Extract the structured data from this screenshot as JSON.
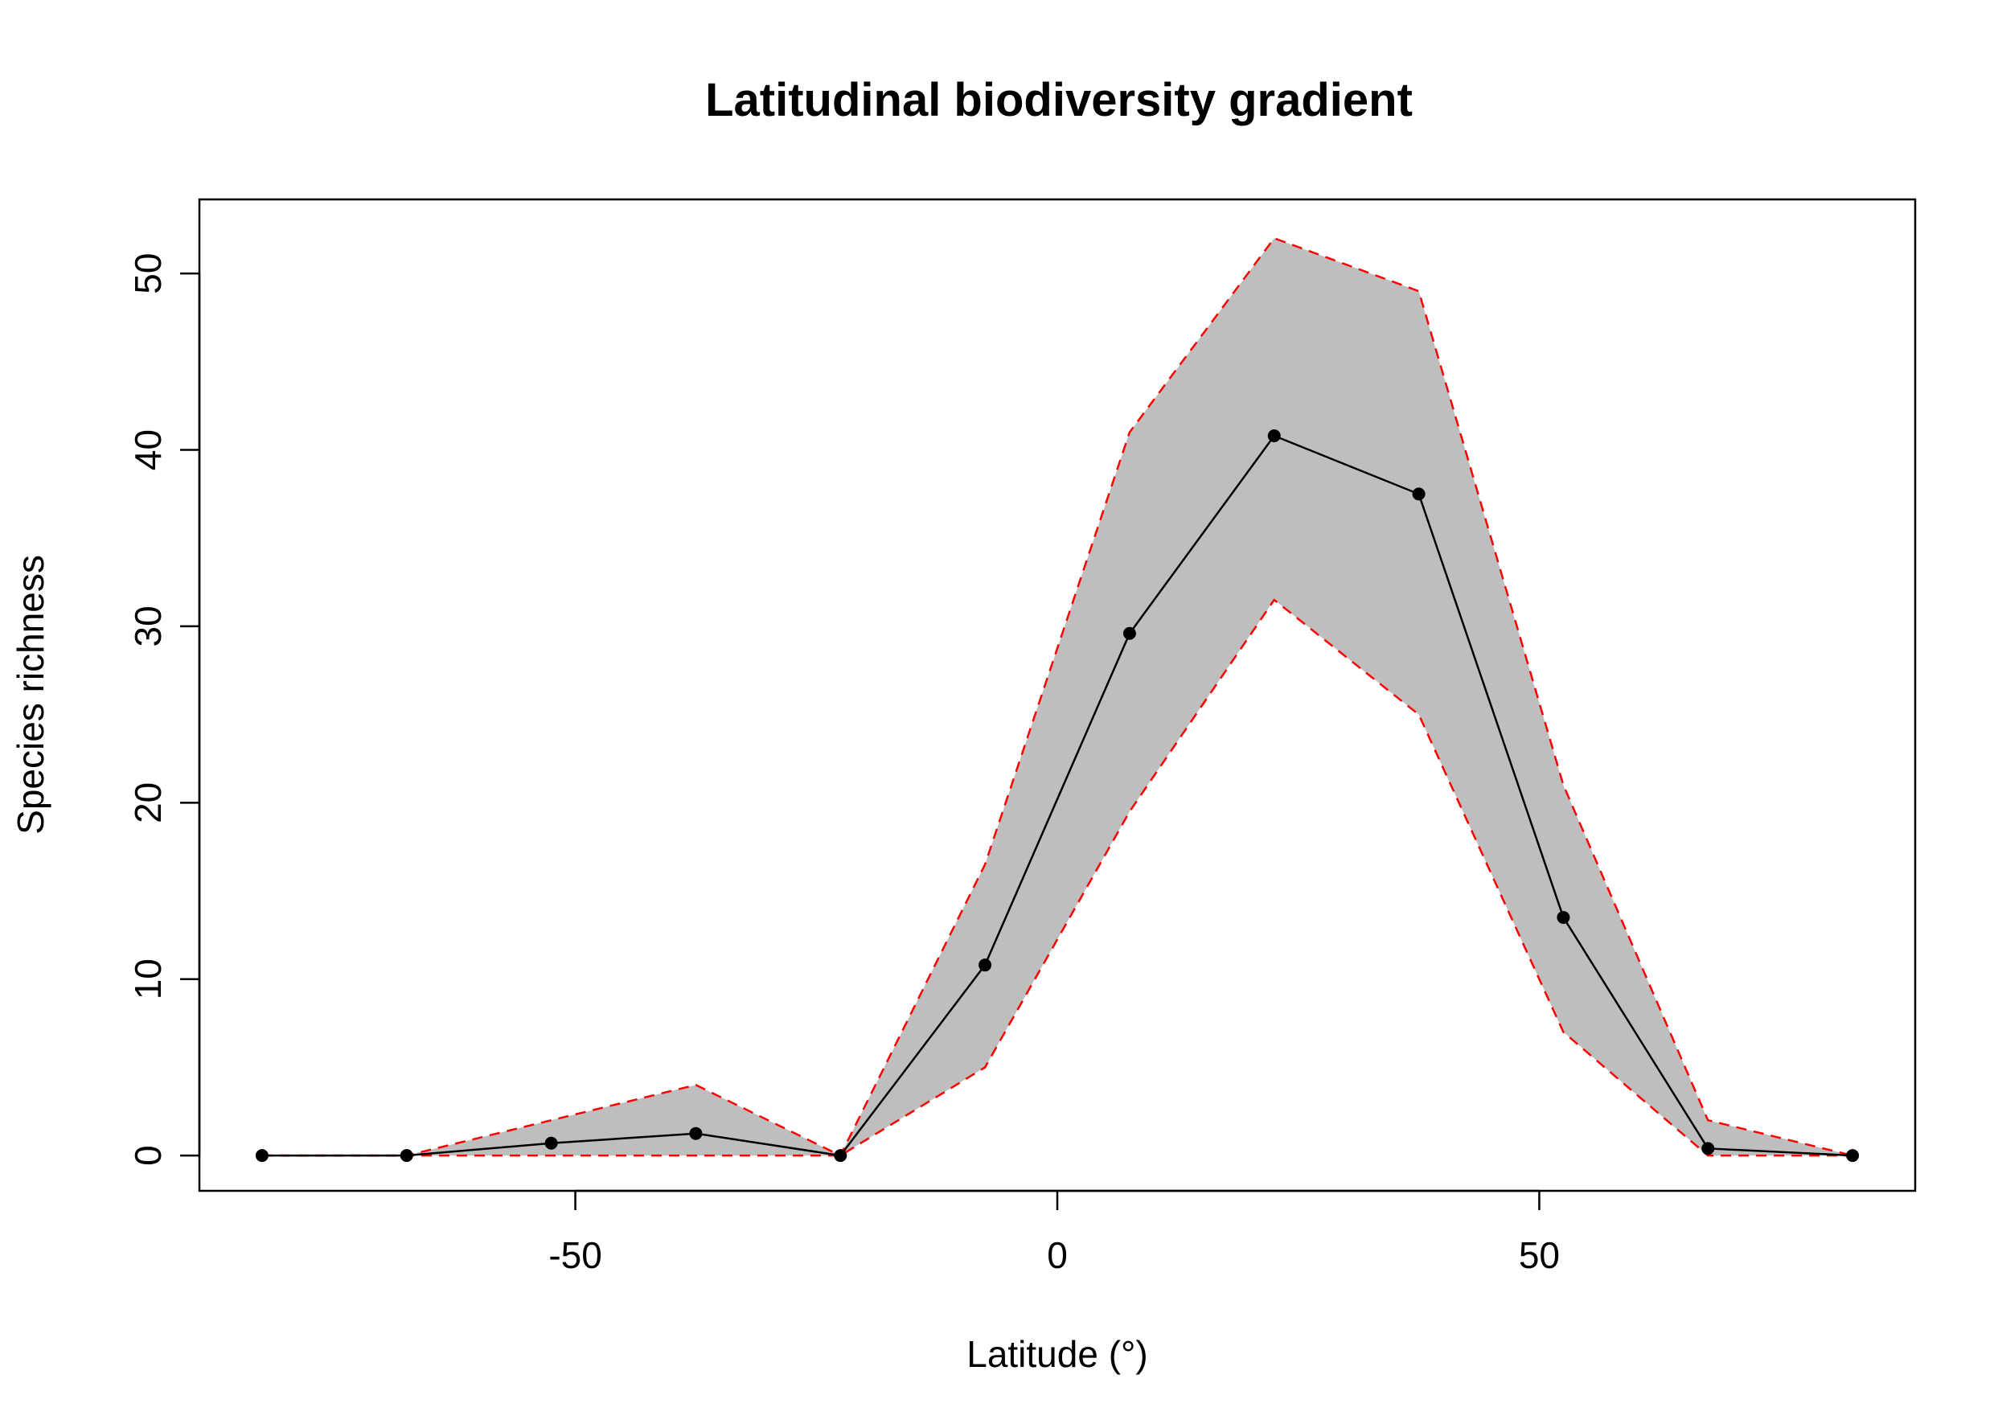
{
  "chart_data": {
    "type": "line",
    "title": "Latitudinal biodiversity gradient",
    "xlabel": "Latitude (°)",
    "ylabel": "Species richness",
    "xlim": [
      -89,
      89
    ],
    "ylim": [
      -2,
      54.2
    ],
    "xticks": [
      -50,
      0,
      50
    ],
    "yticks": [
      0,
      10,
      20,
      30,
      40,
      50
    ],
    "xtick_labels": [
      "-50",
      "0",
      "50"
    ],
    "ytick_labels": [
      "0",
      "10",
      "20",
      "30",
      "40",
      "50"
    ],
    "grid": false,
    "legend": "none",
    "x": [
      -82.5,
      -67.5,
      -52.5,
      -37.5,
      -22.5,
      -7.5,
      7.5,
      22.5,
      37.5,
      52.5,
      67.5,
      82.5
    ],
    "series": [
      {
        "values": [
          0,
          0,
          0.7,
          1.25,
          0,
          10.8,
          29.6,
          40.8,
          37.5,
          13.5,
          0.4,
          0
        ],
        "color": "#000000",
        "style": "solid-with-points"
      },
      {
        "values": [
          0,
          0,
          2.0,
          4.0,
          0,
          16.5,
          41.0,
          52.0,
          49.0,
          21.0,
          2.0,
          0
        ],
        "color": "#ff0000",
        "style": "dashed"
      },
      {
        "values": [
          0,
          0,
          0,
          0,
          0,
          5.0,
          19.5,
          31.5,
          25.0,
          7.0,
          0,
          0
        ],
        "color": "#ff0000",
        "style": "dashed"
      }
    ],
    "band_color": "#bebebe"
  }
}
